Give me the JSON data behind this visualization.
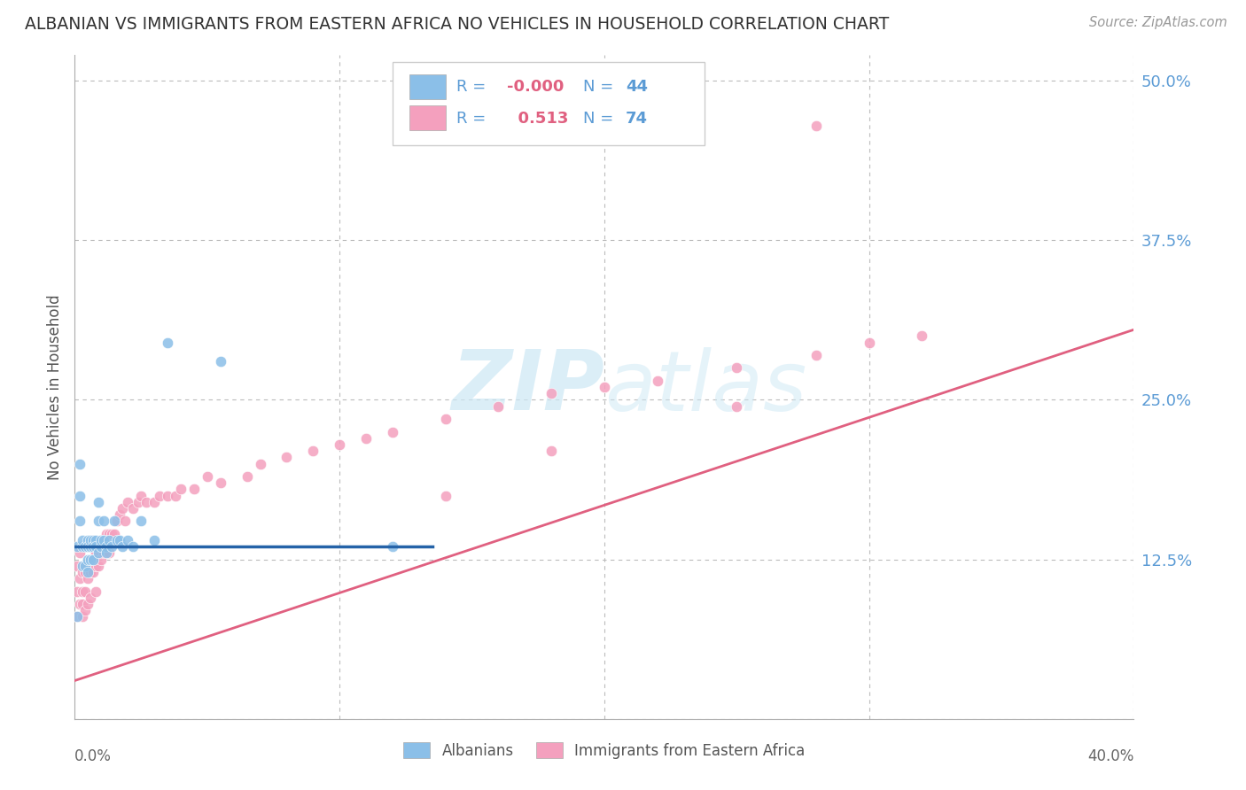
{
  "title": "ALBANIAN VS IMMIGRANTS FROM EASTERN AFRICA NO VEHICLES IN HOUSEHOLD CORRELATION CHART",
  "source": "Source: ZipAtlas.com",
  "ylabel": "No Vehicles in Household",
  "yticks": [
    0.0,
    0.125,
    0.25,
    0.375,
    0.5
  ],
  "ytick_labels": [
    "",
    "12.5%",
    "25.0%",
    "37.5%",
    "50.0%"
  ],
  "xlim": [
    0.0,
    0.4
  ],
  "ylim": [
    0.0,
    0.52
  ],
  "albanians_R": -0.0,
  "albanians_N": 44,
  "immigrants_R": 0.513,
  "immigrants_N": 74,
  "color_albanian": "#8BBFE8",
  "color_immigrant": "#F4A0BE",
  "color_albanian_line": "#2563a8",
  "color_immigrant_line": "#e06080",
  "color_grid": "#bbbbbb",
  "color_title": "#333333",
  "color_right_labels": "#5b9bd5",
  "color_source": "#999999",
  "watermark_color": "#cde8f5",
  "alb_line_x0": 0.0,
  "alb_line_x1": 0.135,
  "alb_line_y": 0.135,
  "imm_line_x0": 0.0,
  "imm_line_x1": 0.4,
  "imm_line_y0": 0.03,
  "imm_line_y1": 0.305,
  "albanians_x": [
    0.001,
    0.001,
    0.002,
    0.002,
    0.002,
    0.003,
    0.003,
    0.003,
    0.004,
    0.004,
    0.005,
    0.005,
    0.005,
    0.005,
    0.006,
    0.006,
    0.006,
    0.007,
    0.007,
    0.007,
    0.008,
    0.008,
    0.009,
    0.009,
    0.009,
    0.01,
    0.01,
    0.011,
    0.011,
    0.012,
    0.012,
    0.013,
    0.014,
    0.015,
    0.016,
    0.017,
    0.018,
    0.02,
    0.022,
    0.025,
    0.03,
    0.035,
    0.055,
    0.12
  ],
  "albanians_y": [
    0.135,
    0.08,
    0.2,
    0.155,
    0.175,
    0.135,
    0.12,
    0.14,
    0.135,
    0.12,
    0.14,
    0.135,
    0.125,
    0.115,
    0.135,
    0.14,
    0.125,
    0.14,
    0.135,
    0.125,
    0.14,
    0.135,
    0.17,
    0.155,
    0.13,
    0.135,
    0.14,
    0.155,
    0.14,
    0.135,
    0.13,
    0.14,
    0.135,
    0.155,
    0.14,
    0.14,
    0.135,
    0.14,
    0.135,
    0.155,
    0.14,
    0.295,
    0.28,
    0.135
  ],
  "immigrants_x": [
    0.001,
    0.001,
    0.001,
    0.002,
    0.002,
    0.002,
    0.003,
    0.003,
    0.003,
    0.003,
    0.004,
    0.004,
    0.004,
    0.004,
    0.005,
    0.005,
    0.005,
    0.006,
    0.006,
    0.006,
    0.007,
    0.007,
    0.008,
    0.008,
    0.008,
    0.009,
    0.009,
    0.01,
    0.01,
    0.011,
    0.011,
    0.012,
    0.012,
    0.013,
    0.013,
    0.014,
    0.015,
    0.016,
    0.017,
    0.018,
    0.019,
    0.02,
    0.022,
    0.024,
    0.025,
    0.027,
    0.03,
    0.032,
    0.035,
    0.038,
    0.04,
    0.045,
    0.05,
    0.055,
    0.065,
    0.07,
    0.08,
    0.09,
    0.1,
    0.11,
    0.12,
    0.14,
    0.16,
    0.18,
    0.2,
    0.22,
    0.25,
    0.28,
    0.3,
    0.32,
    0.25,
    0.18,
    0.14,
    0.28
  ],
  "immigrants_y": [
    0.12,
    0.1,
    0.08,
    0.13,
    0.11,
    0.09,
    0.115,
    0.1,
    0.09,
    0.08,
    0.12,
    0.115,
    0.1,
    0.085,
    0.12,
    0.11,
    0.09,
    0.125,
    0.115,
    0.095,
    0.135,
    0.115,
    0.13,
    0.12,
    0.1,
    0.135,
    0.12,
    0.14,
    0.125,
    0.14,
    0.13,
    0.145,
    0.135,
    0.145,
    0.13,
    0.145,
    0.145,
    0.155,
    0.16,
    0.165,
    0.155,
    0.17,
    0.165,
    0.17,
    0.175,
    0.17,
    0.17,
    0.175,
    0.175,
    0.175,
    0.18,
    0.18,
    0.19,
    0.185,
    0.19,
    0.2,
    0.205,
    0.21,
    0.215,
    0.22,
    0.225,
    0.235,
    0.245,
    0.255,
    0.26,
    0.265,
    0.275,
    0.285,
    0.295,
    0.3,
    0.245,
    0.21,
    0.175,
    0.465
  ]
}
